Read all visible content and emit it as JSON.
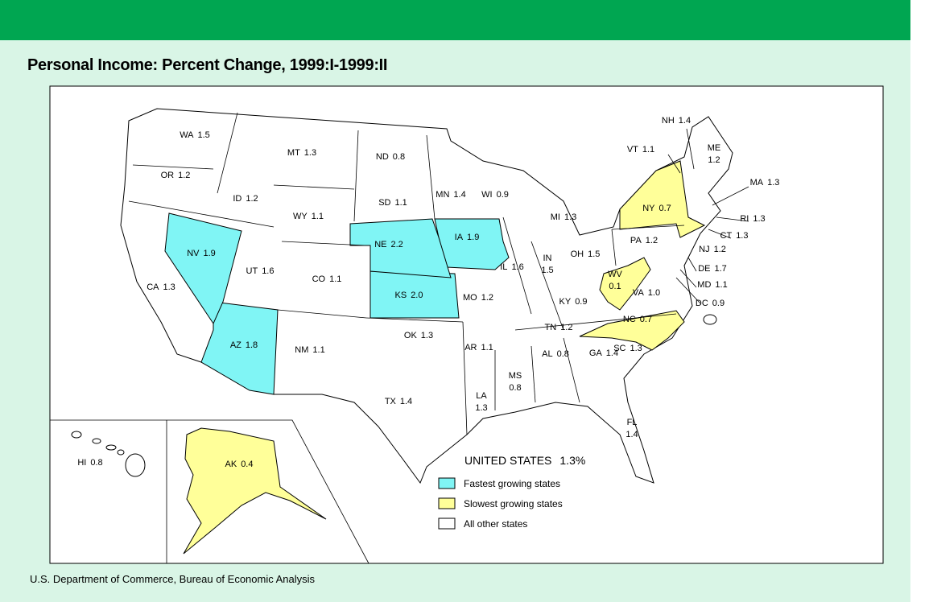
{
  "title": "Personal Income:  Percent Change, 1999:I-1999:II",
  "footer": "U.S. Department of Commerce, Bureau of Economic Analysis",
  "national": {
    "label": "UNITED STATES",
    "value": "1.3%"
  },
  "legend": [
    {
      "label": "Fastest growing states",
      "color": "#80f5f5"
    },
    {
      "label": "Slowest growing states",
      "color": "#ffff99"
    },
    {
      "label": "All other states",
      "color": "#ffffff"
    }
  ],
  "states": [
    {
      "abbr": "WA",
      "value": "1.5",
      "group": 2
    },
    {
      "abbr": "OR",
      "value": "1.2",
      "group": 2
    },
    {
      "abbr": "ID",
      "value": "1.2",
      "group": 2
    },
    {
      "abbr": "MT",
      "value": "1.3",
      "group": 2
    },
    {
      "abbr": "ND",
      "value": "0.8",
      "group": 2
    },
    {
      "abbr": "MN",
      "value": "1.4",
      "group": 2
    },
    {
      "abbr": "WI",
      "value": "0.9",
      "group": 2
    },
    {
      "abbr": "MI",
      "value": "1.3",
      "group": 2
    },
    {
      "abbr": "NY",
      "value": "0.7",
      "group": 1
    },
    {
      "abbr": "VT",
      "value": "1.1",
      "group": 2
    },
    {
      "abbr": "NH",
      "value": "1.4",
      "group": 2
    },
    {
      "abbr": "ME",
      "value": "1.2",
      "group": 2
    },
    {
      "abbr": "MA",
      "value": "1.3",
      "group": 2
    },
    {
      "abbr": "RI",
      "value": "1.3",
      "group": 2
    },
    {
      "abbr": "CT",
      "value": "1.3",
      "group": 2
    },
    {
      "abbr": "NJ",
      "value": "1.2",
      "group": 2
    },
    {
      "abbr": "DE",
      "value": "1.7",
      "group": 2
    },
    {
      "abbr": "MD",
      "value": "1.1",
      "group": 2
    },
    {
      "abbr": "DC",
      "value": "0.9",
      "group": 2
    },
    {
      "abbr": "VA",
      "value": "1.0",
      "group": 2
    },
    {
      "abbr": "WV",
      "value": "0.1",
      "group": 1
    },
    {
      "abbr": "NC",
      "value": "0.7",
      "group": 1
    },
    {
      "abbr": "SC",
      "value": "1.3",
      "group": 2
    },
    {
      "abbr": "GA",
      "value": "1.4",
      "group": 2
    },
    {
      "abbr": "FL",
      "value": "1.4",
      "group": 2
    },
    {
      "abbr": "AL",
      "value": "0.8",
      "group": 2
    },
    {
      "abbr": "MS",
      "value": "0.8",
      "group": 2
    },
    {
      "abbr": "LA",
      "value": "1.3",
      "group": 2
    },
    {
      "abbr": "TN",
      "value": "1.2",
      "group": 2
    },
    {
      "abbr": "KY",
      "value": "0.9",
      "group": 2
    },
    {
      "abbr": "OH",
      "value": "1.5",
      "group": 2
    },
    {
      "abbr": "IN",
      "value": "1.5",
      "group": 2
    },
    {
      "abbr": "IL",
      "value": "1.6",
      "group": 2
    },
    {
      "abbr": "PA",
      "value": "1.2",
      "group": 2
    },
    {
      "abbr": "IA",
      "value": "1.9",
      "group": 0
    },
    {
      "abbr": "MO",
      "value": "1.2",
      "group": 2
    },
    {
      "abbr": "AR",
      "value": "1.1",
      "group": 2
    },
    {
      "abbr": "OK",
      "value": "1.3",
      "group": 2
    },
    {
      "abbr": "TX",
      "value": "1.4",
      "group": 2
    },
    {
      "abbr": "KS",
      "value": "2.0",
      "group": 0
    },
    {
      "abbr": "NE",
      "value": "2.2",
      "group": 0
    },
    {
      "abbr": "SD",
      "value": "1.1",
      "group": 2
    },
    {
      "abbr": "WY",
      "value": "1.1",
      "group": 2
    },
    {
      "abbr": "CO",
      "value": "1.1",
      "group": 2
    },
    {
      "abbr": "NM",
      "value": "1.1",
      "group": 2
    },
    {
      "abbr": "AZ",
      "value": "1.8",
      "group": 0
    },
    {
      "abbr": "UT",
      "value": "1.6",
      "group": 2
    },
    {
      "abbr": "NV",
      "value": "1.9",
      "group": 0
    },
    {
      "abbr": "CA",
      "value": "1.3",
      "group": 2
    },
    {
      "abbr": "AK",
      "value": "0.4",
      "group": 1
    },
    {
      "abbr": "HI",
      "value": "0.8",
      "group": 2
    }
  ]
}
